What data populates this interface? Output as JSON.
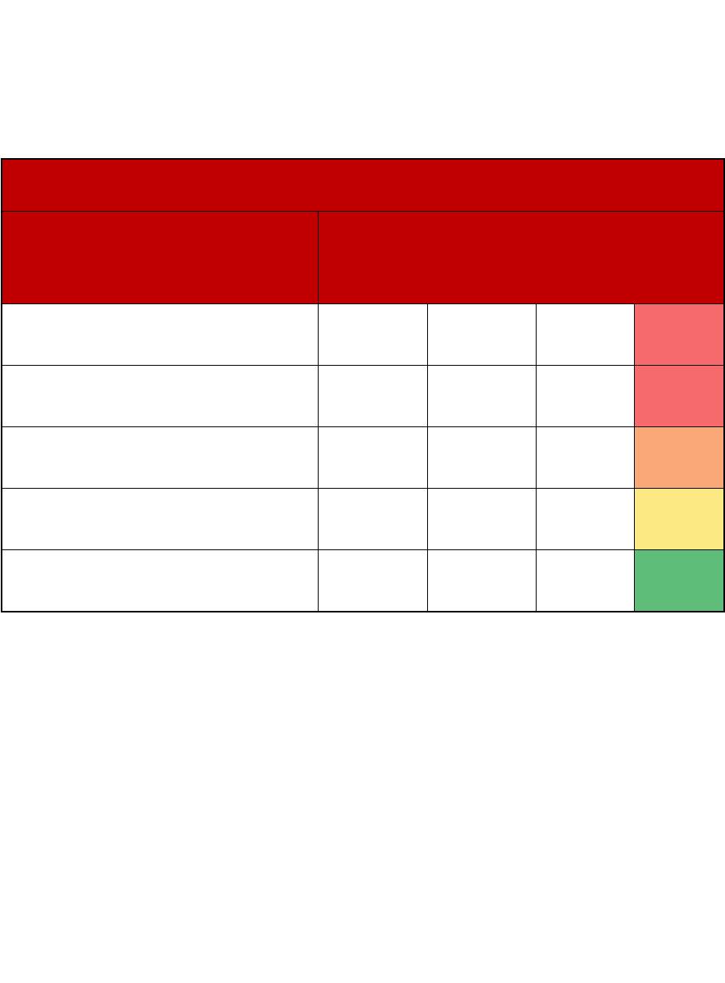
{
  "page": {
    "background_color": "#ffffff",
    "description": "Blank document page containing an empty rating table template with colored status column"
  },
  "table": {
    "title_row": {
      "text": "",
      "bg": "#c00000"
    },
    "subheader_row": {
      "left_cell": {
        "text": "",
        "bg": "#c00000"
      },
      "right_cell": {
        "text": "",
        "bg": "#c00000"
      }
    },
    "rows": [
      {
        "cells": [
          "",
          "",
          "",
          ""
        ],
        "status_text": "",
        "status_color": "#f66a6b"
      },
      {
        "cells": [
          "",
          "",
          "",
          ""
        ],
        "status_text": "",
        "status_color": "#f66a6b"
      },
      {
        "cells": [
          "",
          "",
          "",
          ""
        ],
        "status_text": "",
        "status_color": "#fba878"
      },
      {
        "cells": [
          "",
          "",
          "",
          ""
        ],
        "status_text": "",
        "status_color": "#fde983"
      },
      {
        "cells": [
          "",
          "",
          "",
          ""
        ],
        "status_text": "",
        "status_color": "#5ebd79"
      }
    ],
    "colors": {
      "header_bg": "#c00000",
      "border": "#000000",
      "status_scale": [
        "#f66a6b",
        "#f66a6b",
        "#fba878",
        "#fde983",
        "#5ebd79"
      ]
    }
  }
}
